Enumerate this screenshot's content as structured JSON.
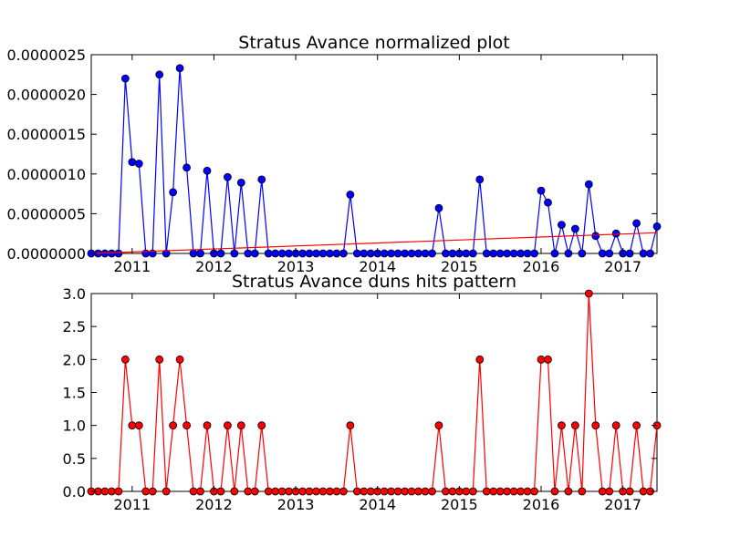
{
  "chart_data": [
    {
      "type": "line",
      "title": "Stratus Avance normalized plot",
      "xlabel": "",
      "ylabel": "",
      "xlim": [
        "2010-07",
        "2017-06"
      ],
      "ylim": [
        0,
        2.5e-06
      ],
      "xticks": [
        "2011",
        "2012",
        "2013",
        "2014",
        "2015",
        "2016",
        "2017"
      ],
      "yticks": [
        "0.0000000",
        "0.0000005",
        "0.0000010",
        "0.0000015",
        "0.0000020",
        "0.0000025"
      ],
      "grid": false,
      "series": [
        {
          "color": "#0000ff",
          "marker": "circle",
          "points": [
            [
              "2010-07",
              0
            ],
            [
              "2010-08",
              0
            ],
            [
              "2010-09",
              0
            ],
            [
              "2010-10",
              0
            ],
            [
              "2010-11",
              0
            ],
            [
              "2010-12",
              2.2e-06
            ],
            [
              "2011-01",
              1.15e-06
            ],
            [
              "2011-02",
              1.13e-06
            ],
            [
              "2011-03",
              0
            ],
            [
              "2011-04",
              0
            ],
            [
              "2011-05",
              2.25e-06
            ],
            [
              "2011-06",
              0
            ],
            [
              "2011-07",
              7.7e-07
            ],
            [
              "2011-08",
              2.33e-06
            ],
            [
              "2011-09",
              1.08e-06
            ],
            [
              "2011-10",
              0
            ],
            [
              "2011-11",
              0
            ],
            [
              "2011-12",
              1.04e-06
            ],
            [
              "2012-01",
              0
            ],
            [
              "2012-02",
              0
            ],
            [
              "2012-03",
              9.6e-07
            ],
            [
              "2012-04",
              0
            ],
            [
              "2012-05",
              8.9e-07
            ],
            [
              "2012-06",
              0
            ],
            [
              "2012-07",
              0
            ],
            [
              "2012-08",
              9.3e-07
            ],
            [
              "2012-09",
              0
            ],
            [
              "2012-10",
              0
            ],
            [
              "2012-11",
              0
            ],
            [
              "2012-12",
              0
            ],
            [
              "2013-01",
              0
            ],
            [
              "2013-02",
              0
            ],
            [
              "2013-03",
              0
            ],
            [
              "2013-04",
              0
            ],
            [
              "2013-05",
              0
            ],
            [
              "2013-06",
              0
            ],
            [
              "2013-07",
              0
            ],
            [
              "2013-08",
              0
            ],
            [
              "2013-09",
              7.4e-07
            ],
            [
              "2013-10",
              0
            ],
            [
              "2013-11",
              0
            ],
            [
              "2013-12",
              0
            ],
            [
              "2014-01",
              0
            ],
            [
              "2014-02",
              0
            ],
            [
              "2014-03",
              0
            ],
            [
              "2014-04",
              0
            ],
            [
              "2014-05",
              0
            ],
            [
              "2014-06",
              0
            ],
            [
              "2014-07",
              0
            ],
            [
              "2014-08",
              0
            ],
            [
              "2014-09",
              0
            ],
            [
              "2014-10",
              5.7e-07
            ],
            [
              "2014-11",
              0
            ],
            [
              "2014-12",
              0
            ],
            [
              "2015-01",
              0
            ],
            [
              "2015-02",
              0
            ],
            [
              "2015-03",
              0
            ],
            [
              "2015-04",
              9.3e-07
            ],
            [
              "2015-05",
              0
            ],
            [
              "2015-06",
              0
            ],
            [
              "2015-07",
              0
            ],
            [
              "2015-08",
              0
            ],
            [
              "2015-09",
              0
            ],
            [
              "2015-10",
              0
            ],
            [
              "2015-11",
              0
            ],
            [
              "2015-12",
              0
            ],
            [
              "2016-01",
              7.9e-07
            ],
            [
              "2016-02",
              6.4e-07
            ],
            [
              "2016-03",
              0
            ],
            [
              "2016-04",
              3.6e-07
            ],
            [
              "2016-05",
              0
            ],
            [
              "2016-06",
              3.1e-07
            ],
            [
              "2016-07",
              0
            ],
            [
              "2016-08",
              8.7e-07
            ],
            [
              "2016-09",
              2.2e-07
            ],
            [
              "2016-10",
              0
            ],
            [
              "2016-11",
              0
            ],
            [
              "2016-12",
              2.5e-07
            ],
            [
              "2017-01",
              0
            ],
            [
              "2017-02",
              0
            ],
            [
              "2017-03",
              3.8e-07
            ],
            [
              "2017-04",
              0
            ],
            [
              "2017-05",
              0
            ],
            [
              "2017-06",
              3.4e-07
            ]
          ]
        },
        {
          "color": "#ff0000",
          "marker": "none",
          "points": [
            [
              "2010-07",
              0.0
            ],
            [
              "2017-06",
              2.6e-07
            ]
          ]
        }
      ]
    },
    {
      "type": "line",
      "title": "Stratus Avance duns hits pattern",
      "xlabel": "",
      "ylabel": "",
      "xlim": [
        "2010-07",
        "2017-06"
      ],
      "ylim": [
        0,
        3
      ],
      "xticks": [
        "2011",
        "2012",
        "2013",
        "2014",
        "2015",
        "2016",
        "2017"
      ],
      "yticks": [
        "0.0",
        "0.5",
        "1.0",
        "1.5",
        "2.0",
        "2.5",
        "3.0"
      ],
      "grid": false,
      "series": [
        {
          "color": "#ff0000",
          "marker": "circle",
          "points": [
            [
              "2010-07",
              0
            ],
            [
              "2010-08",
              0
            ],
            [
              "2010-09",
              0
            ],
            [
              "2010-10",
              0
            ],
            [
              "2010-11",
              0
            ],
            [
              "2010-12",
              2
            ],
            [
              "2011-01",
              1
            ],
            [
              "2011-02",
              1
            ],
            [
              "2011-03",
              0
            ],
            [
              "2011-04",
              0
            ],
            [
              "2011-05",
              2
            ],
            [
              "2011-06",
              0
            ],
            [
              "2011-07",
              1
            ],
            [
              "2011-08",
              2
            ],
            [
              "2011-09",
              1
            ],
            [
              "2011-10",
              0
            ],
            [
              "2011-11",
              0
            ],
            [
              "2011-12",
              1
            ],
            [
              "2012-01",
              0
            ],
            [
              "2012-02",
              0
            ],
            [
              "2012-03",
              1
            ],
            [
              "2012-04",
              0
            ],
            [
              "2012-05",
              1
            ],
            [
              "2012-06",
              0
            ],
            [
              "2012-07",
              0
            ],
            [
              "2012-08",
              1
            ],
            [
              "2012-09",
              0
            ],
            [
              "2012-10",
              0
            ],
            [
              "2012-11",
              0
            ],
            [
              "2012-12",
              0
            ],
            [
              "2013-01",
              0
            ],
            [
              "2013-02",
              0
            ],
            [
              "2013-03",
              0
            ],
            [
              "2013-04",
              0
            ],
            [
              "2013-05",
              0
            ],
            [
              "2013-06",
              0
            ],
            [
              "2013-07",
              0
            ],
            [
              "2013-08",
              0
            ],
            [
              "2013-09",
              1
            ],
            [
              "2013-10",
              0
            ],
            [
              "2013-11",
              0
            ],
            [
              "2013-12",
              0
            ],
            [
              "2014-01",
              0
            ],
            [
              "2014-02",
              0
            ],
            [
              "2014-03",
              0
            ],
            [
              "2014-04",
              0
            ],
            [
              "2014-05",
              0
            ],
            [
              "2014-06",
              0
            ],
            [
              "2014-07",
              0
            ],
            [
              "2014-08",
              0
            ],
            [
              "2014-09",
              0
            ],
            [
              "2014-10",
              1
            ],
            [
              "2014-11",
              0
            ],
            [
              "2014-12",
              0
            ],
            [
              "2015-01",
              0
            ],
            [
              "2015-02",
              0
            ],
            [
              "2015-03",
              0
            ],
            [
              "2015-04",
              2
            ],
            [
              "2015-05",
              0
            ],
            [
              "2015-06",
              0
            ],
            [
              "2015-07",
              0
            ],
            [
              "2015-08",
              0
            ],
            [
              "2015-09",
              0
            ],
            [
              "2015-10",
              0
            ],
            [
              "2015-11",
              0
            ],
            [
              "2015-12",
              0
            ],
            [
              "2016-01",
              2
            ],
            [
              "2016-02",
              2
            ],
            [
              "2016-03",
              0
            ],
            [
              "2016-04",
              1
            ],
            [
              "2016-05",
              0
            ],
            [
              "2016-06",
              1
            ],
            [
              "2016-07",
              0
            ],
            [
              "2016-08",
              3
            ],
            [
              "2016-09",
              1
            ],
            [
              "2016-10",
              0
            ],
            [
              "2016-11",
              0
            ],
            [
              "2016-12",
              1
            ],
            [
              "2017-01",
              0
            ],
            [
              "2017-02",
              0
            ],
            [
              "2017-03",
              1
            ],
            [
              "2017-04",
              0
            ],
            [
              "2017-05",
              0
            ],
            [
              "2017-06",
              1
            ]
          ]
        }
      ]
    }
  ]
}
